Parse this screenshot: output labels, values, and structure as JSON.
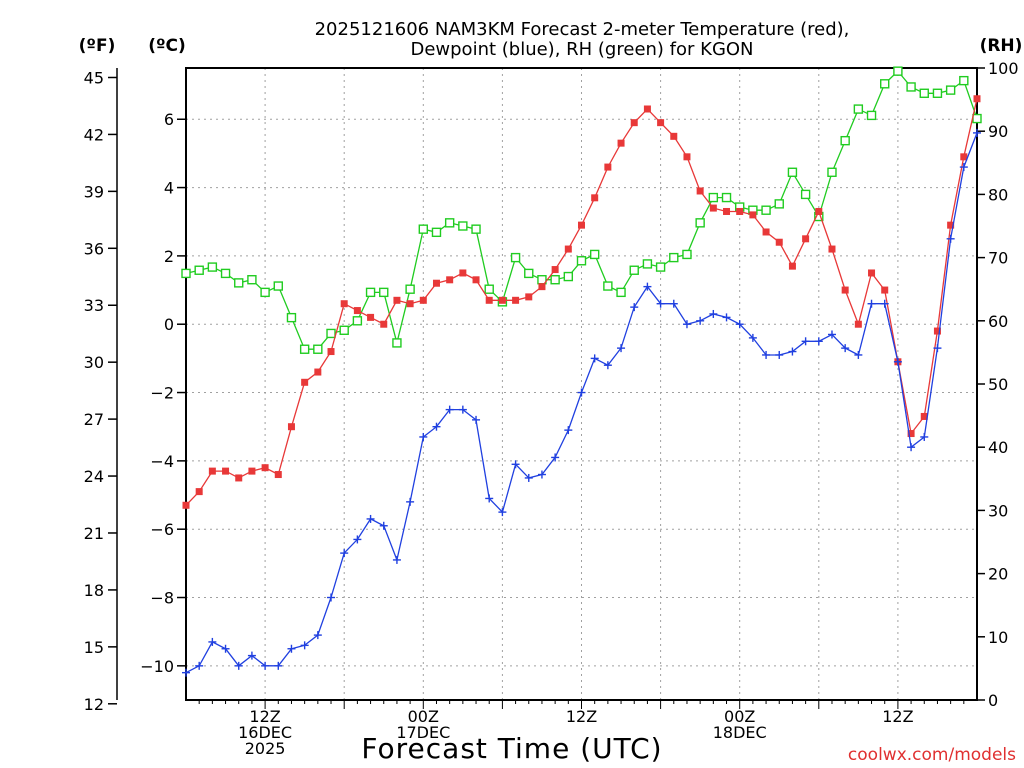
{
  "chart_data": {
    "type": "line",
    "title_lines": [
      "2025121606 NAM3KM Forecast 2-meter Temperature (red),",
      "Dewpoint (blue), RH (green) for KGON"
    ],
    "xlabel": "Forecast Time (UTC)",
    "credit": "coolwx.com/models",
    "units": {
      "fahrenheit": "(ºF)",
      "celsius": "(ºC)",
      "rh": "(RH)"
    },
    "x_range_hours": [
      0,
      60
    ],
    "x_ticks": [
      {
        "hour": 6,
        "lines": [
          "12Z",
          "16DEC",
          "2025"
        ]
      },
      {
        "hour": 18,
        "lines": [
          "00Z",
          "17DEC"
        ]
      },
      {
        "hour": 30,
        "lines": [
          "12Z"
        ]
      },
      {
        "hour": 42,
        "lines": [
          "00Z",
          "18DEC"
        ]
      },
      {
        "hour": 54,
        "lines": [
          "12Z"
        ]
      }
    ],
    "celsius_axis": {
      "range": [
        -11.0,
        7.5
      ],
      "ticks": [
        "−10",
        "−8",
        "−6",
        "−4",
        "−2",
        "0",
        "2",
        "4",
        "6"
      ],
      "tick_values": [
        -10,
        -8,
        -6,
        -4,
        -2,
        0,
        2,
        4,
        6
      ]
    },
    "fahrenheit_axis": {
      "ticks": [
        "12",
        "15",
        "18",
        "21",
        "24",
        "27",
        "30",
        "33",
        "36",
        "39",
        "42",
        "45"
      ],
      "tick_values": [
        12,
        15,
        18,
        21,
        24,
        27,
        30,
        33,
        36,
        39,
        42,
        45
      ]
    },
    "rh_axis": {
      "range": [
        0,
        100
      ],
      "ticks": [
        "0",
        "10",
        "20",
        "30",
        "40",
        "50",
        "60",
        "70",
        "80",
        "90",
        "100"
      ],
      "tick_values": [
        0,
        10,
        20,
        30,
        40,
        50,
        60,
        70,
        80,
        90,
        100
      ]
    },
    "colors": {
      "temperature": "#e83838",
      "dewpoint": "#2040e0",
      "rh": "#20cc20",
      "grid": "#a0a0a0"
    },
    "series": [
      {
        "name": "Temperature (°C)",
        "axis": "celsius",
        "marker": "filled-square",
        "values": [
          -5.3,
          -4.9,
          -4.3,
          -4.3,
          -4.5,
          -4.3,
          -4.2,
          -4.4,
          -3.0,
          -1.7,
          -1.4,
          -0.8,
          0.6,
          0.4,
          0.2,
          0.0,
          0.7,
          0.6,
          0.7,
          1.2,
          1.3,
          1.5,
          1.3,
          0.7,
          0.7,
          0.7,
          0.8,
          1.1,
          1.6,
          2.2,
          2.9,
          3.7,
          4.6,
          5.3,
          5.9,
          6.3,
          5.9,
          5.5,
          4.9,
          3.9,
          3.4,
          3.3,
          3.3,
          3.2,
          2.7,
          2.4,
          1.7,
          2.5,
          3.3,
          2.2,
          1.0,
          0.0,
          1.5,
          1.0,
          -1.1,
          -3.2,
          -2.7,
          -0.2,
          2.9,
          4.9,
          6.6
        ]
      },
      {
        "name": "Dewpoint (°C)",
        "axis": "celsius",
        "marker": "plus",
        "values": [
          -10.2,
          -10.0,
          -9.3,
          -9.5,
          -10.0,
          -9.7,
          -10.0,
          -10.0,
          -9.5,
          -9.4,
          -9.1,
          -8.0,
          -6.7,
          -6.3,
          -5.7,
          -5.9,
          -6.9,
          -5.2,
          -3.3,
          -3.0,
          -2.5,
          -2.5,
          -2.8,
          -5.1,
          -5.5,
          -4.1,
          -4.5,
          -4.4,
          -3.9,
          -3.1,
          -2.0,
          -1.0,
          -1.2,
          -0.7,
          0.5,
          1.1,
          0.6,
          0.6,
          0.0,
          0.1,
          0.3,
          0.2,
          0.0,
          -0.4,
          -0.9,
          -0.9,
          -0.8,
          -0.5,
          -0.5,
          -0.3,
          -0.7,
          -0.9,
          0.6,
          0.6,
          -1.1,
          -3.6,
          -3.3,
          -0.7,
          2.5,
          4.6,
          5.6
        ]
      },
      {
        "name": "RH (%)",
        "axis": "rh",
        "marker": "open-square",
        "values": [
          67.5,
          68,
          68.5,
          67.5,
          66,
          66.5,
          64.5,
          65.5,
          60.5,
          55.5,
          55.5,
          58,
          58.5,
          60,
          64.5,
          64.5,
          56.5,
          65,
          74.5,
          74,
          75.5,
          75,
          74.5,
          65,
          63,
          70,
          67.5,
          66.5,
          66.5,
          67,
          69.5,
          70.5,
          65.5,
          64.5,
          68,
          69,
          68.5,
          70,
          70.5,
          75.5,
          79.5,
          79.5,
          78,
          77.5,
          77.5,
          78.5,
          83.5,
          80,
          76.5,
          83.5,
          88.5,
          93.5,
          92.5,
          97.5,
          99.5,
          97,
          96,
          96,
          96.5,
          98,
          92
        ]
      }
    ]
  }
}
